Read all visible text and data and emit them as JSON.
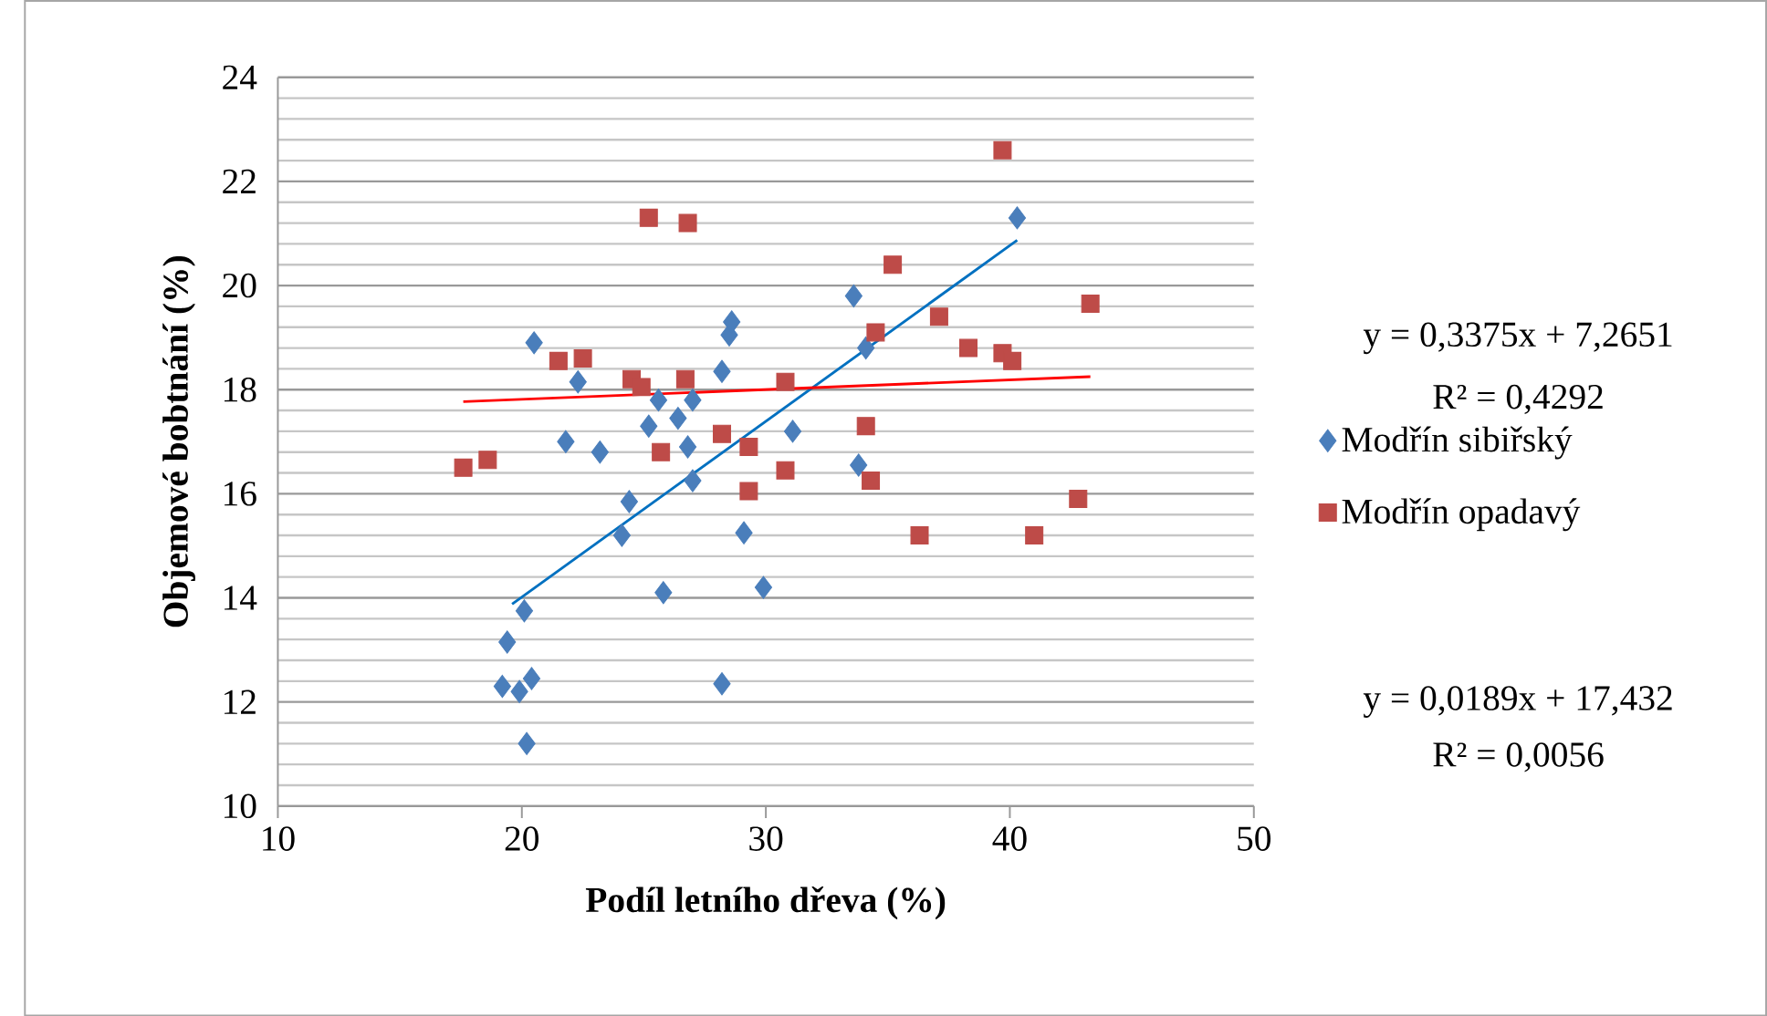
{
  "chart_data": {
    "type": "scatter",
    "xlabel": "Podíl letního dřeva (%)",
    "ylabel": "Objemové bobtnání (%)",
    "xlim": [
      10,
      50
    ],
    "xticks": [
      10,
      20,
      30,
      40,
      50
    ],
    "ylim": [
      10,
      24
    ],
    "yticks": [
      10,
      12,
      14,
      16,
      18,
      20,
      22,
      24
    ],
    "grid": "y",
    "legend": "right",
    "annotations": [
      "y = 0,3375x + 7,2651",
      "R² = 0,4292",
      "y = 0,0189x + 17,432",
      "R² = 0,0056"
    ],
    "series": [
      {
        "name": "Modřín sibiřský",
        "marker": "diamond",
        "color": "#4a7ebb",
        "x": [
          40.3,
          33.6,
          34.1,
          28.2,
          28.5,
          28.6,
          20.5,
          22.3,
          25.6,
          27.0,
          25.2,
          26.4,
          26.8,
          27.0,
          31.1,
          23.2,
          21.8,
          24.4,
          24.1,
          25.8,
          29.1,
          29.9,
          33.8,
          28.2,
          20.1,
          19.4,
          19.2,
          20.4,
          19.9,
          20.2
        ],
        "values": [
          21.3,
          19.8,
          18.8,
          18.35,
          19.05,
          19.3,
          18.9,
          18.15,
          17.8,
          17.8,
          17.3,
          17.45,
          16.9,
          16.25,
          17.2,
          16.8,
          17.0,
          15.85,
          15.2,
          14.1,
          15.25,
          14.2,
          16.55,
          12.35,
          13.75,
          13.15,
          12.3,
          12.45,
          12.2,
          11.2
        ]
      },
      {
        "name": "Modřín opadavý",
        "marker": "square",
        "color": "#be4b48",
        "x": [
          25.2,
          26.8,
          21.5,
          22.5,
          24.5,
          24.9,
          26.7,
          28.2,
          29.3,
          25.7,
          17.6,
          18.6,
          29.3,
          30.8,
          30.8,
          39.7,
          35.2,
          34.5,
          37.1,
          38.3,
          39.7,
          40.1,
          43.3,
          34.1,
          34.3,
          36.3,
          41.0,
          42.8
        ],
        "values": [
          21.3,
          21.2,
          18.55,
          18.6,
          18.2,
          18.05,
          18.2,
          17.15,
          16.9,
          16.8,
          16.5,
          16.65,
          16.05,
          18.15,
          16.45,
          22.6,
          20.4,
          19.1,
          19.4,
          18.8,
          18.7,
          18.55,
          19.65,
          17.3,
          16.25,
          15.2,
          15.2,
          15.9
        ]
      },
      {
        "type": "line",
        "marker": "none",
        "color": "#0070c0",
        "x": [
          19.6,
          40.3
        ],
        "values": [
          13.88,
          20.87
        ]
      },
      {
        "type": "line",
        "marker": "none",
        "color": "#ff0000",
        "x": [
          17.6,
          43.3
        ],
        "values": [
          17.77,
          18.25
        ]
      }
    ]
  }
}
